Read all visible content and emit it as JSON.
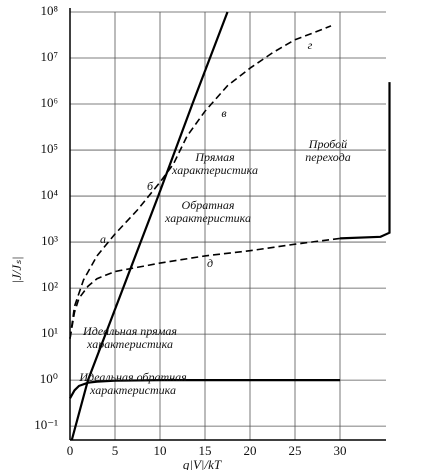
{
  "chart_data": {
    "type": "line",
    "x_label": "q|V|/kT",
    "y_label": "|J/Jₛ|",
    "y_log": true,
    "grid": true,
    "xlim": [
      0,
      36
    ],
    "ylim": [
      0.05,
      100000000
    ],
    "xticks": [
      0,
      5,
      10,
      15,
      20,
      25,
      30
    ],
    "yticks": [
      {
        "value": 0.1,
        "label": "10⁻¹"
      },
      {
        "value": 1,
        "label": "10⁰"
      },
      {
        "value": 10,
        "label": "10¹"
      },
      {
        "value": 100,
        "label": "10²"
      },
      {
        "value": 1000,
        "label": "10³"
      },
      {
        "value": 10000,
        "label": "10⁴"
      },
      {
        "value": 100000,
        "label": "10⁵"
      },
      {
        "value": 1000000,
        "label": "10⁶"
      },
      {
        "value": 10000000,
        "label": "10⁷"
      },
      {
        "value": 100000000,
        "label": "10⁸"
      }
    ],
    "series": [
      {
        "color": "#000000",
        "style": "solid",
        "x": [
          0.2,
          2,
          5.9,
          9.8,
          13.6,
          17.5
        ],
        "values": [
          0.05,
          1,
          100,
          10000,
          1000000,
          100000000
        ]
      },
      {
        "color": "#000000",
        "style": "solid",
        "x": [
          0,
          0.5,
          1,
          2,
          3,
          5,
          10,
          30
        ],
        "values": [
          0.4,
          0.6,
          0.75,
          0.88,
          0.93,
          0.97,
          1,
          1
        ]
      },
      {
        "color": "#000000",
        "style": "dashed",
        "x": [
          0,
          0.5,
          1.5,
          3,
          5,
          7.5,
          10,
          11.5,
          13,
          15,
          17.5,
          20,
          22.5,
          25,
          27,
          29
        ],
        "values": [
          8,
          40,
          150,
          500,
          1500,
          5000,
          20000,
          50000,
          200000,
          700000,
          2500000,
          6000000,
          13000000,
          25000000,
          35000000,
          50000000
        ]
      },
      {
        "color": "#000000",
        "style": "dashed",
        "x": [
          0,
          0.5,
          1,
          2,
          3,
          5,
          10,
          15,
          20,
          25,
          30
        ],
        "values": [
          8,
          30,
          60,
          110,
          160,
          230,
          350,
          500,
          650,
          900,
          1200
        ]
      },
      {
        "color": "#000000",
        "style": "solid",
        "x": [
          30,
          34.5,
          35.5,
          35.5
        ],
        "values": [
          1200,
          1300,
          1600,
          3000000
        ]
      }
    ],
    "annotations": [
      {
        "lines": [
          "Прямая",
          "характеристика"
        ]
      },
      {
        "lines": [
          "Обратная",
          "характеристика"
        ]
      },
      {
        "lines": [
          "Идеальная прямая",
          "характеристика"
        ]
      },
      {
        "lines": [
          "Идеальная обратная",
          "характеристика"
        ]
      },
      {
        "lines": [
          "Пробой",
          "перехода"
        ]
      },
      {
        "lines": [
          "а"
        ]
      },
      {
        "lines": [
          "б"
        ]
      },
      {
        "lines": [
          "в"
        ]
      },
      {
        "lines": [
          "г"
        ]
      },
      {
        "lines": [
          "д"
        ]
      }
    ]
  }
}
